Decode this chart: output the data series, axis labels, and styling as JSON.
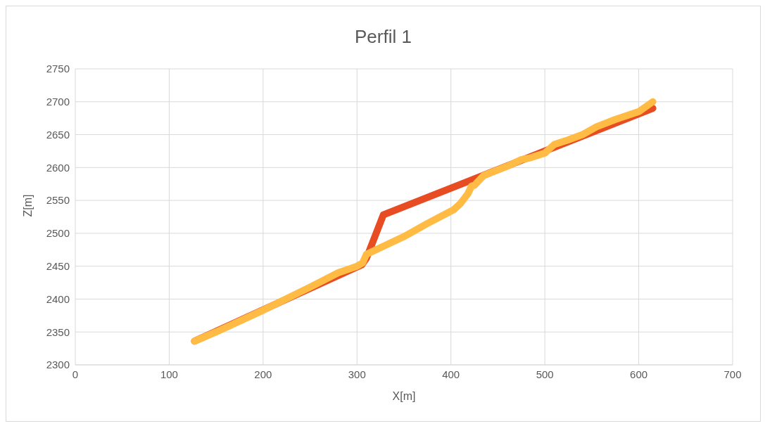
{
  "chart_data": {
    "type": "line",
    "title": "Perfil 1",
    "xlabel": "X[m]",
    "ylabel": "Z[m]",
    "series": [
      {
        "color": "#e84c22",
        "x": [
          127,
          305,
          310,
          328,
          615
        ],
        "values": [
          2336,
          2452,
          2462,
          2528,
          2690
        ]
      },
      {
        "color": "#ffbb44",
        "x": [
          127,
          150,
          200,
          250,
          280,
          300,
          306,
          310,
          350,
          375,
          403,
          410,
          418,
          422,
          425,
          435,
          460,
          475,
          485,
          500,
          510,
          525,
          540,
          555,
          575,
          600,
          615
        ],
        "values": [
          2336,
          2350,
          2383,
          2418,
          2440,
          2450,
          2455,
          2468,
          2495,
          2515,
          2536,
          2545,
          2560,
          2572,
          2573,
          2588,
          2602,
          2612,
          2615,
          2622,
          2635,
          2642,
          2650,
          2662,
          2673,
          2685,
          2700
        ]
      }
    ],
    "xlim": [
      0,
      700
    ],
    "xticks": [
      0,
      100,
      200,
      300,
      400,
      500,
      600,
      700
    ],
    "ylim": [
      2300,
      2750
    ],
    "yticks": [
      2300,
      2350,
      2400,
      2450,
      2500,
      2550,
      2600,
      2650,
      2700,
      2750
    ],
    "grid": true,
    "legend": false,
    "marker": "none",
    "line_style": "solid"
  }
}
